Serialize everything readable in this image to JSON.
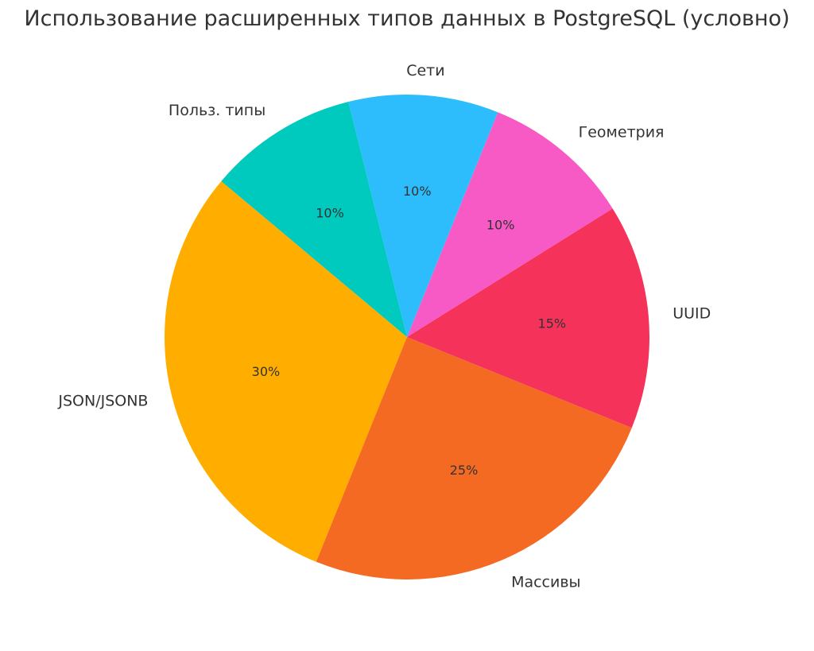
{
  "chart_data": {
    "type": "pie",
    "title": "Использование расширенных типов данных в PostgreSQL (условно)",
    "categories": [
      "JSON/JSONB",
      "Массивы",
      "UUID",
      "Геометрия",
      "Сети",
      "Польз. типы"
    ],
    "values": [
      30,
      25,
      15,
      10,
      10,
      10
    ],
    "value_labels": [
      "30%",
      "25%",
      "15%",
      "10%",
      "10%",
      "10%"
    ],
    "colors": [
      "#FFAE00",
      "#F56A23",
      "#F5325A",
      "#F75AC5",
      "#2DBDFC",
      "#00C9BE"
    ],
    "start_angle_deg": 140,
    "direction": "counterclockwise",
    "legend": "none"
  }
}
